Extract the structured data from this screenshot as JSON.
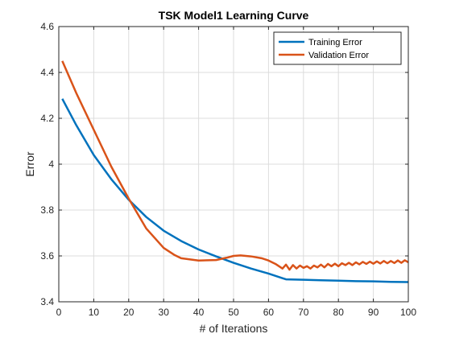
{
  "chart_data": {
    "type": "line",
    "title": "TSK Model1 Learning Curve",
    "xlabel": "# of Iterations",
    "ylabel": "Error",
    "xlim": [
      0,
      100
    ],
    "ylim": [
      3.4,
      4.6
    ],
    "xticks": [
      0,
      10,
      20,
      30,
      40,
      50,
      60,
      70,
      80,
      90,
      100
    ],
    "yticks": [
      3.4,
      3.6,
      3.8,
      4,
      4.2,
      4.4,
      4.6
    ],
    "grid": true,
    "legend_position": "top-right",
    "series": [
      {
        "name": "Training Error",
        "color": "#0072BD",
        "x": [
          1,
          5,
          10,
          15,
          20,
          25,
          30,
          35,
          40,
          45,
          50,
          55,
          60,
          64,
          65,
          70,
          75,
          80,
          85,
          90,
          95,
          100
        ],
        "y": [
          4.285,
          4.17,
          4.04,
          3.935,
          3.845,
          3.77,
          3.71,
          3.665,
          3.628,
          3.598,
          3.57,
          3.545,
          3.523,
          3.503,
          3.498,
          3.496,
          3.494,
          3.492,
          3.49,
          3.489,
          3.487,
          3.486
        ]
      },
      {
        "name": "Validation Error",
        "color": "#D95319",
        "x": [
          1,
          5,
          10,
          15,
          20,
          25,
          30,
          33,
          35,
          40,
          45,
          48,
          50,
          52,
          55,
          58,
          60,
          62,
          63,
          64,
          65,
          66,
          67,
          68,
          69,
          70,
          71,
          72,
          73,
          74,
          75,
          76,
          77,
          78,
          79,
          80,
          81,
          82,
          83,
          84,
          85,
          86,
          87,
          88,
          89,
          90,
          91,
          92,
          93,
          94,
          95,
          96,
          97,
          98,
          99,
          100
        ],
        "y": [
          4.45,
          4.31,
          4.15,
          3.99,
          3.85,
          3.72,
          3.635,
          3.605,
          3.59,
          3.58,
          3.582,
          3.592,
          3.6,
          3.602,
          3.598,
          3.59,
          3.58,
          3.565,
          3.555,
          3.545,
          3.562,
          3.54,
          3.56,
          3.545,
          3.558,
          3.548,
          3.555,
          3.545,
          3.558,
          3.55,
          3.562,
          3.55,
          3.565,
          3.555,
          3.566,
          3.555,
          3.568,
          3.56,
          3.57,
          3.56,
          3.572,
          3.563,
          3.574,
          3.565,
          3.575,
          3.566,
          3.576,
          3.567,
          3.578,
          3.568,
          3.578,
          3.569,
          3.58,
          3.57,
          3.581,
          3.572
        ]
      }
    ]
  }
}
